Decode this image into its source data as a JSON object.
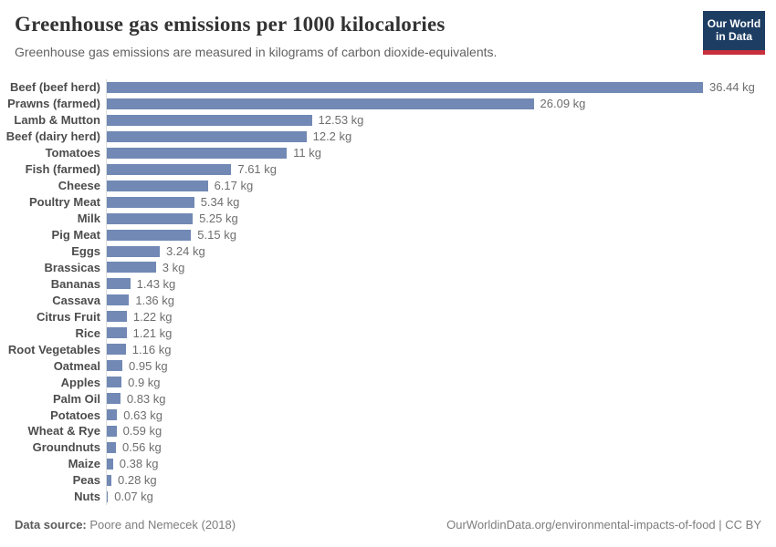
{
  "header": {
    "title": "Greenhouse gas emissions per 1000 kilocalories",
    "subtitle": "Greenhouse gas emissions are measured in kilograms of carbon dioxide-equivalents.",
    "logo": {
      "line1": "Our World",
      "line2": "in Data"
    }
  },
  "chart_data": {
    "type": "bar",
    "orientation": "horizontal",
    "title": "Greenhouse gas emissions per 1000 kilocalories",
    "xlabel": "",
    "ylabel": "",
    "unit": "kg",
    "xlim": [
      0,
      36.44
    ],
    "grid": false,
    "bar_color": "#7189b4",
    "categories": [
      "Beef (beef herd)",
      "Prawns (farmed)",
      "Lamb & Mutton",
      "Beef (dairy herd)",
      "Tomatoes",
      "Fish (farmed)",
      "Cheese",
      "Poultry Meat",
      "Milk",
      "Pig Meat",
      "Eggs",
      "Brassicas",
      "Bananas",
      "Cassava",
      "Citrus Fruit",
      "Rice",
      "Root Vegetables",
      "Oatmeal",
      "Apples",
      "Palm Oil",
      "Potatoes",
      "Wheat & Rye",
      "Groundnuts",
      "Maize",
      "Peas",
      "Nuts"
    ],
    "values": [
      36.44,
      26.09,
      12.53,
      12.2,
      11,
      7.61,
      6.17,
      5.34,
      5.25,
      5.15,
      3.24,
      3,
      1.43,
      1.36,
      1.22,
      1.21,
      1.16,
      0.95,
      0.9,
      0.83,
      0.63,
      0.59,
      0.56,
      0.38,
      0.28,
      0.07
    ],
    "value_labels": [
      "36.44 kg",
      "26.09 kg",
      "12.53 kg",
      "12.2 kg",
      "11 kg",
      "7.61 kg",
      "6.17 kg",
      "5.34 kg",
      "5.25 kg",
      "5.15 kg",
      "3.24 kg",
      "3 kg",
      "1.43 kg",
      "1.36 kg",
      "1.22 kg",
      "1.21 kg",
      "1.16 kg",
      "0.95 kg",
      "0.9 kg",
      "0.83 kg",
      "0.63 kg",
      "0.59 kg",
      "0.56 kg",
      "0.38 kg",
      "0.28 kg",
      "0.07 kg"
    ]
  },
  "footer": {
    "datasource_label": "Data source:",
    "datasource_value": " Poore and Nemecek (2018)",
    "attribution": "OurWorldinData.org/environmental-impacts-of-food | CC BY"
  },
  "colors": {
    "bar": "#7189b4",
    "axis_line": "#dedede",
    "logo_bg": "#1d3d63",
    "logo_accent": "#c7303c"
  }
}
